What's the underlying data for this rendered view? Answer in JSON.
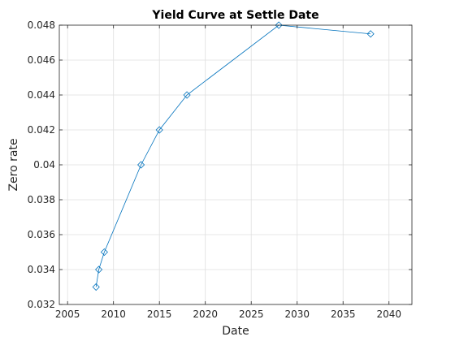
{
  "chart_data": {
    "type": "line",
    "title": "Yield Curve at Settle Date",
    "xlabel": "Date",
    "ylabel": "Zero rate",
    "x_ticks": [
      "2005",
      "2010",
      "2015",
      "2020",
      "2025",
      "2030",
      "2035",
      "2040"
    ],
    "y_ticks": [
      "0.032",
      "0.034",
      "0.036",
      "0.038",
      "0.04",
      "0.042",
      "0.044",
      "0.046",
      "0.048"
    ],
    "xlim": [
      2004.1,
      2042.5
    ],
    "ylim": [
      0.032,
      0.048
    ],
    "grid": true,
    "marker": "diamond",
    "series": [
      {
        "color": "#0072bd",
        "x": [
          2008.1,
          2008.4,
          2009.0,
          2013.0,
          2015.0,
          2018.0,
          2028.0,
          2038.0
        ],
        "y": [
          0.033,
          0.034,
          0.035,
          0.04,
          0.042,
          0.044,
          0.048,
          0.0475
        ]
      }
    ]
  }
}
